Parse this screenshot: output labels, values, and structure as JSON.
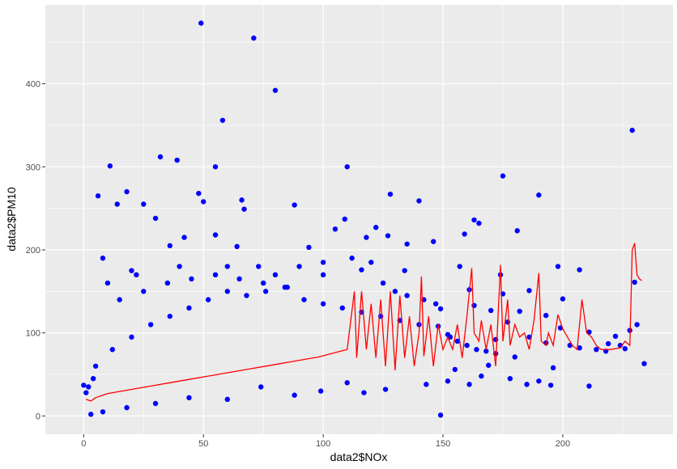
{
  "chart_data": {
    "type": "scatter",
    "title": "",
    "xlabel": "data2$NOx",
    "ylabel": "data2$PM10",
    "xlim": [
      -16,
      246
    ],
    "ylim": [
      -22,
      495
    ],
    "x_ticks": [
      0,
      50,
      100,
      150,
      200
    ],
    "y_ticks": [
      0,
      100,
      200,
      300,
      400
    ],
    "grid": true,
    "legend": "none",
    "colors": {
      "panel": "#EBEBEB",
      "grid": "#FFFFFF",
      "points": "#0000FF",
      "line": "#FF0000"
    },
    "series": [
      {
        "type": "scatter",
        "points": [
          [
            49,
            473
          ],
          [
            71,
            455
          ],
          [
            80,
            392
          ],
          [
            58,
            356
          ],
          [
            229,
            344
          ],
          [
            32,
            312
          ],
          [
            39,
            308
          ],
          [
            11,
            301
          ],
          [
            55,
            300
          ],
          [
            110,
            300
          ],
          [
            175,
            289
          ],
          [
            18,
            270
          ],
          [
            6,
            265
          ],
          [
            48,
            268
          ],
          [
            190,
            266
          ],
          [
            25,
            255
          ],
          [
            50,
            258
          ],
          [
            66,
            260
          ],
          [
            88,
            254
          ],
          [
            163,
            236
          ],
          [
            109,
            237
          ],
          [
            122,
            227
          ],
          [
            165,
            232
          ],
          [
            30,
            238
          ],
          [
            181,
            223
          ],
          [
            140,
            259
          ],
          [
            128,
            267
          ],
          [
            14,
            255
          ],
          [
            67,
            249
          ],
          [
            42,
            215
          ],
          [
            55,
            218
          ],
          [
            105,
            225
          ],
          [
            118,
            215
          ],
          [
            127,
            217
          ],
          [
            159,
            219
          ],
          [
            36,
            205
          ],
          [
            64,
            204
          ],
          [
            94,
            203
          ],
          [
            135,
            207
          ],
          [
            146,
            210
          ],
          [
            198,
            180
          ],
          [
            207,
            176
          ],
          [
            174,
            170
          ],
          [
            157,
            180
          ],
          [
            134,
            175
          ],
          [
            116,
            176
          ],
          [
            100,
            170
          ],
          [
            73,
            180
          ],
          [
            22,
            170
          ],
          [
            8,
            190
          ],
          [
            175,
            147
          ],
          [
            186,
            151
          ],
          [
            200,
            141
          ],
          [
            161,
            152
          ],
          [
            230,
            161
          ],
          [
            193,
            121
          ],
          [
            170,
            127
          ],
          [
            182,
            126
          ],
          [
            149,
            129
          ],
          [
            163,
            133
          ],
          [
            177,
            113
          ],
          [
            199,
            106
          ],
          [
            211,
            101
          ],
          [
            231,
            110
          ],
          [
            222,
            96
          ],
          [
            172,
            92
          ],
          [
            152,
            98
          ],
          [
            148,
            108
          ],
          [
            186,
            95
          ],
          [
            193,
            88
          ],
          [
            207,
            82
          ],
          [
            218,
            78
          ],
          [
            226,
            81
          ],
          [
            234,
            63
          ],
          [
            196,
            58
          ],
          [
            180,
            71
          ],
          [
            169,
            61
          ],
          [
            155,
            56
          ],
          [
            166,
            48
          ],
          [
            178,
            45
          ],
          [
            185,
            38
          ],
          [
            190,
            42
          ],
          [
            195,
            37
          ],
          [
            211,
            36
          ],
          [
            161,
            38
          ],
          [
            152,
            42
          ],
          [
            143,
            38
          ],
          [
            149,
            1
          ],
          [
            126,
            32
          ],
          [
            117,
            28
          ],
          [
            110,
            40
          ],
          [
            99,
            30
          ],
          [
            88,
            25
          ],
          [
            74,
            35
          ],
          [
            60,
            20
          ],
          [
            44,
            22
          ],
          [
            30,
            15
          ],
          [
            18,
            10
          ],
          [
            8,
            5
          ],
          [
            3,
            2
          ],
          [
            1,
            28
          ],
          [
            2,
            35
          ],
          [
            0,
            37
          ],
          [
            4,
            45
          ],
          [
            5,
            60
          ],
          [
            12,
            80
          ],
          [
            20,
            95
          ],
          [
            28,
            110
          ],
          [
            36,
            120
          ],
          [
            44,
            130
          ],
          [
            52,
            140
          ],
          [
            60,
            150
          ],
          [
            68,
            145
          ],
          [
            76,
            150
          ],
          [
            84,
            155
          ],
          [
            92,
            140
          ],
          [
            100,
            135
          ],
          [
            108,
            130
          ],
          [
            116,
            125
          ],
          [
            124,
            120
          ],
          [
            132,
            115
          ],
          [
            140,
            110
          ],
          [
            15,
            140
          ],
          [
            25,
            150
          ],
          [
            35,
            160
          ],
          [
            45,
            165
          ],
          [
            55,
            170
          ],
          [
            65,
            165
          ],
          [
            75,
            160
          ],
          [
            85,
            155
          ],
          [
            10,
            160
          ],
          [
            20,
            175
          ],
          [
            40,
            180
          ],
          [
            60,
            180
          ],
          [
            80,
            170
          ],
          [
            90,
            180
          ],
          [
            100,
            185
          ],
          [
            112,
            190
          ],
          [
            120,
            185
          ],
          [
            125,
            160
          ],
          [
            130,
            150
          ],
          [
            135,
            145
          ],
          [
            142,
            140
          ],
          [
            147,
            135
          ],
          [
            153,
            95
          ],
          [
            156,
            90
          ],
          [
            160,
            85
          ],
          [
            164,
            80
          ],
          [
            168,
            78
          ],
          [
            172,
            75
          ],
          [
            203,
            85
          ],
          [
            214,
            80
          ],
          [
            224,
            85
          ],
          [
            228,
            103
          ],
          [
            219,
            87
          ]
        ]
      },
      {
        "type": "line",
        "points": [
          [
            1,
            20
          ],
          [
            3,
            18
          ],
          [
            5,
            22
          ],
          [
            8,
            25
          ],
          [
            10,
            27
          ],
          [
            14,
            29
          ],
          [
            18,
            31
          ],
          [
            22,
            33
          ],
          [
            26,
            35
          ],
          [
            30,
            37
          ],
          [
            34,
            39
          ],
          [
            38,
            41
          ],
          [
            42,
            43
          ],
          [
            46,
            45
          ],
          [
            50,
            47
          ],
          [
            54,
            49
          ],
          [
            58,
            51
          ],
          [
            62,
            53
          ],
          [
            66,
            55
          ],
          [
            70,
            57
          ],
          [
            74,
            59
          ],
          [
            78,
            61
          ],
          [
            82,
            63
          ],
          [
            86,
            65
          ],
          [
            90,
            67
          ],
          [
            94,
            69
          ],
          [
            98,
            71
          ],
          [
            102,
            74
          ],
          [
            106,
            77
          ],
          [
            110,
            80
          ],
          [
            113,
            150
          ],
          [
            114,
            70
          ],
          [
            116,
            150
          ],
          [
            118,
            80
          ],
          [
            120,
            135
          ],
          [
            122,
            70
          ],
          [
            124,
            140
          ],
          [
            126,
            60
          ],
          [
            128,
            150
          ],
          [
            130,
            55
          ],
          [
            132,
            145
          ],
          [
            134,
            70
          ],
          [
            136,
            120
          ],
          [
            138,
            60
          ],
          [
            140,
            100
          ],
          [
            141,
            168
          ],
          [
            142,
            72
          ],
          [
            144,
            120
          ],
          [
            146,
            60
          ],
          [
            148,
            110
          ],
          [
            150,
            80
          ],
          [
            152,
            95
          ],
          [
            154,
            80
          ],
          [
            156,
            110
          ],
          [
            158,
            70
          ],
          [
            160,
            120
          ],
          [
            162,
            178
          ],
          [
            163,
            100
          ],
          [
            165,
            90
          ],
          [
            166,
            115
          ],
          [
            168,
            80
          ],
          [
            170,
            110
          ],
          [
            172,
            60
          ],
          [
            174,
            182
          ],
          [
            175,
            90
          ],
          [
            177,
            140
          ],
          [
            178,
            85
          ],
          [
            180,
            110
          ],
          [
            182,
            95
          ],
          [
            184,
            100
          ],
          [
            186,
            80
          ],
          [
            188,
            115
          ],
          [
            190,
            172
          ],
          [
            191,
            90
          ],
          [
            193,
            85
          ],
          [
            194,
            100
          ],
          [
            196,
            85
          ],
          [
            198,
            122
          ],
          [
            200,
            105
          ],
          [
            202,
            95
          ],
          [
            204,
            85
          ],
          [
            206,
            80
          ],
          [
            208,
            140
          ],
          [
            210,
            100
          ],
          [
            212,
            95
          ],
          [
            214,
            85
          ],
          [
            216,
            80
          ],
          [
            220,
            80
          ],
          [
            224,
            82
          ],
          [
            226,
            90
          ],
          [
            228,
            85
          ],
          [
            229,
            200
          ],
          [
            230,
            208
          ],
          [
            231,
            170
          ],
          [
            232,
            165
          ],
          [
            233,
            163
          ]
        ]
      }
    ]
  }
}
